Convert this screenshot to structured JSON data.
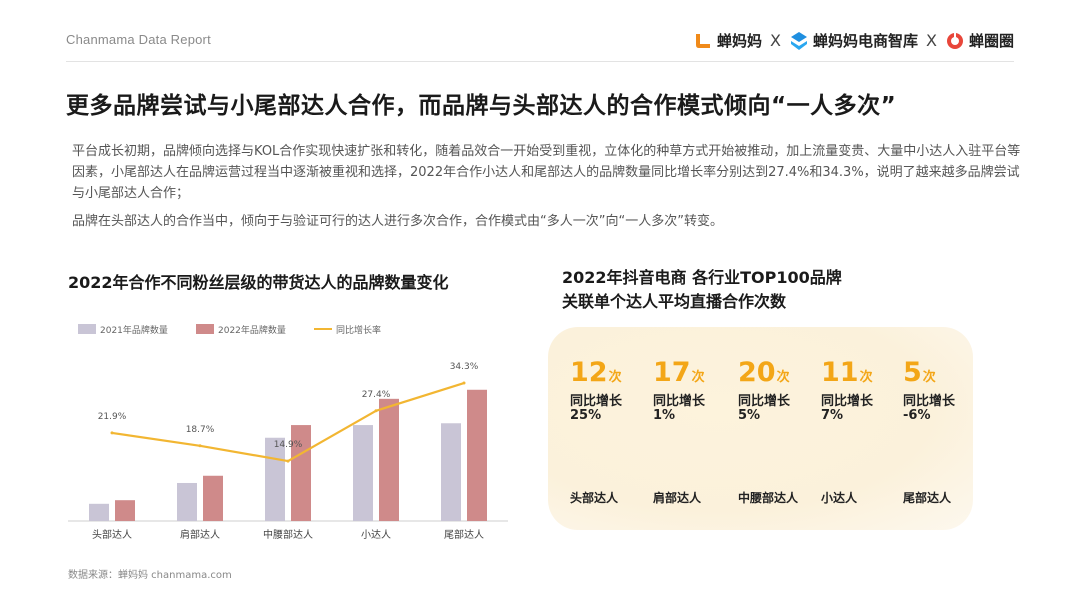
{
  "header": {
    "report_label": "Chanmama Data Report",
    "brands": [
      {
        "name": "蝉妈妈",
        "color": "#f08a1a",
        "icon": "chanmama-logo-icon"
      },
      {
        "name": "蝉妈妈电商智库",
        "color": "#1f8fe0",
        "icon": "zhiku-logo-icon"
      },
      {
        "name": "蝉圈圈",
        "color": "#e8463a",
        "icon": "chanquanquan-logo-icon"
      }
    ],
    "separator": "X"
  },
  "title": "更多品牌尝试与小尾部达人合作，而品牌与头部达人的合作模式倾向“一人多次”",
  "paragraphs": [
    "平台成长初期，品牌倾向选择与KOL合作实现快速扩张和转化，随着品效合一开始受到重视，立体化的种草方式开始被推动，加上流量变贵、大量中小达人入驻平台等因素，小尾部达人在品牌运营过程当中逐渐被重视和选择，2022年合作小达人和尾部达人的品牌数量同比增长率分别达到27.4%和34.3%，说明了越来越多品牌尝试与小尾部达人合作；",
    "品牌在头部达人的合作当中，倾向于与验证可行的达人进行多次合作，合作模式由“多人一次”向“一人多次”转变。"
  ],
  "chart_data": [
    {
      "type": "bar",
      "title": "2022年合作不同粉丝层级的带货达人的品牌数量变化",
      "categories": [
        "头部达人",
        "肩部达人",
        "中腰部达人",
        "小达人",
        "尾部达人"
      ],
      "series": [
        {
          "name": "2021年品牌数量",
          "color": "#c9c5d6",
          "values": [
            19,
            42,
            92,
            106,
            108
          ]
        },
        {
          "name": "2022年品牌数量",
          "color": "#cf8a8a",
          "values": [
            23,
            50,
            106,
            135,
            145
          ]
        },
        {
          "name": "同比增长率",
          "type": "line",
          "color": "#f2b632",
          "axis": "secondary",
          "values": [
            21.9,
            18.7,
            14.9,
            27.4,
            34.3
          ],
          "labels": [
            "21.9%",
            "18.7%",
            "14.9%",
            "27.4%",
            "34.3%"
          ]
        }
      ],
      "ylim": [
        0,
        200
      ],
      "y2lim": [
        0,
        45
      ],
      "legend_position": "top-left",
      "grid": false
    },
    {
      "type": "table",
      "title_lines": [
        "2022年抖音电商 各行业TOP100品牌",
        "关联单个达人平均直播合作次数"
      ],
      "unit": "次",
      "growth_label": "同比增长",
      "items": [
        {
          "tier": "头部达人",
          "count": 12,
          "growth": "25%"
        },
        {
          "tier": "肩部达人",
          "count": 17,
          "growth": "1%"
        },
        {
          "tier": "中腰部达人",
          "count": 20,
          "growth": "5%"
        },
        {
          "tier": "小达人",
          "count": 11,
          "growth": "7%"
        },
        {
          "tier": "尾部达人",
          "count": 5,
          "growth": "-6%"
        }
      ],
      "accent_color": "#f3a617"
    }
  ],
  "footer": {
    "source": "数据来源：蝉妈妈 chanmama.com"
  }
}
